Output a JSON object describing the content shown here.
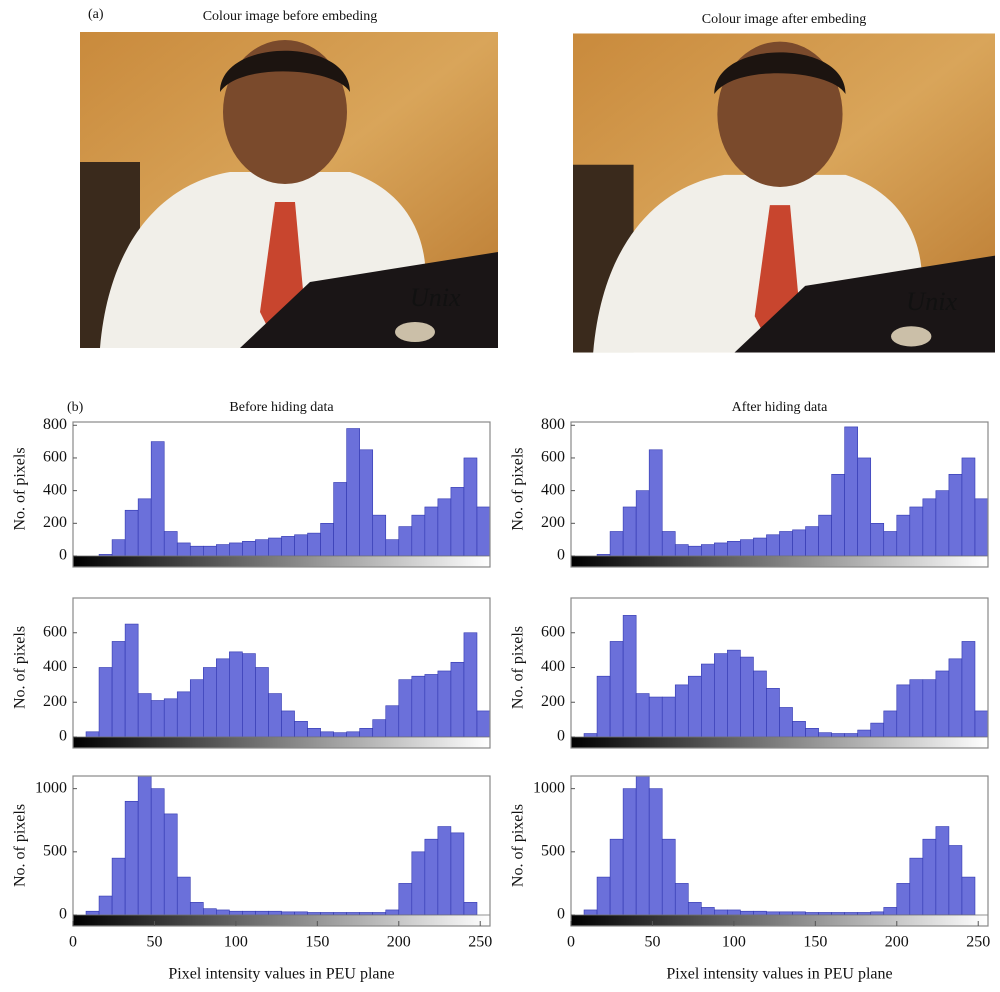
{
  "panel_a": {
    "label": "(a)",
    "images": [
      {
        "caption": "Colour image before embeding"
      },
      {
        "caption": "Colour image after embeding"
      }
    ]
  },
  "panel_b": {
    "label": "(b)"
  },
  "chart_data": [
    {
      "type": "histogram",
      "title": "Before hiding data",
      "y_label": "No. of pixels",
      "color": "#6b70da",
      "bins": [
        0,
        8,
        16,
        24,
        32,
        40,
        48,
        56,
        64,
        72,
        80,
        88,
        96,
        104,
        112,
        120,
        128,
        136,
        144,
        152,
        160,
        168,
        176,
        184,
        192,
        200,
        208,
        216,
        224,
        232,
        240,
        248,
        256
      ],
      "values": [
        0,
        0,
        10,
        100,
        280,
        350,
        700,
        150,
        80,
        60,
        60,
        70,
        80,
        90,
        100,
        110,
        120,
        130,
        140,
        200,
        450,
        780,
        650,
        250,
        100,
        180,
        250,
        300,
        350,
        420,
        600,
        300
      ],
      "xlim": [
        0,
        256
      ],
      "ylim": [
        0,
        820
      ],
      "yticks": [
        0,
        200,
        400,
        600,
        800
      ]
    },
    {
      "type": "histogram",
      "title": "After hiding data",
      "y_label": "No. of pixels",
      "color": "#6b70da",
      "bins": [
        0,
        8,
        16,
        24,
        32,
        40,
        48,
        56,
        64,
        72,
        80,
        88,
        96,
        104,
        112,
        120,
        128,
        136,
        144,
        152,
        160,
        168,
        176,
        184,
        192,
        200,
        208,
        216,
        224,
        232,
        240,
        248,
        256
      ],
      "values": [
        0,
        0,
        10,
        150,
        300,
        400,
        650,
        150,
        70,
        60,
        70,
        80,
        90,
        100,
        110,
        130,
        150,
        160,
        180,
        250,
        500,
        790,
        600,
        200,
        150,
        250,
        300,
        350,
        400,
        500,
        600,
        350
      ],
      "xlim": [
        0,
        256
      ],
      "ylim": [
        0,
        820
      ],
      "yticks": [
        0,
        200,
        400,
        600,
        800
      ]
    },
    {
      "type": "histogram",
      "y_label": "No. of pixels",
      "color": "#6b70da",
      "bins": [
        0,
        8,
        16,
        24,
        32,
        40,
        48,
        56,
        64,
        72,
        80,
        88,
        96,
        104,
        112,
        120,
        128,
        136,
        144,
        152,
        160,
        168,
        176,
        184,
        192,
        200,
        208,
        216,
        224,
        232,
        240,
        248,
        256
      ],
      "values": [
        0,
        30,
        400,
        550,
        650,
        250,
        210,
        220,
        260,
        330,
        400,
        450,
        490,
        480,
        400,
        250,
        150,
        90,
        50,
        30,
        25,
        30,
        50,
        100,
        180,
        330,
        350,
        360,
        380,
        430,
        600,
        150
      ],
      "xlim": [
        0,
        256
      ],
      "ylim": [
        0,
        800
      ],
      "yticks": [
        0,
        200,
        400,
        600
      ]
    },
    {
      "type": "histogram",
      "y_label": "No. of pixels",
      "color": "#6b70da",
      "bins": [
        0,
        8,
        16,
        24,
        32,
        40,
        48,
        56,
        64,
        72,
        80,
        88,
        96,
        104,
        112,
        120,
        128,
        136,
        144,
        152,
        160,
        168,
        176,
        184,
        192,
        200,
        208,
        216,
        224,
        232,
        240,
        248,
        256
      ],
      "values": [
        0,
        20,
        350,
        550,
        700,
        250,
        230,
        230,
        300,
        350,
        420,
        480,
        500,
        460,
        380,
        280,
        170,
        90,
        50,
        25,
        20,
        20,
        40,
        80,
        150,
        300,
        330,
        330,
        380,
        450,
        550,
        150
      ],
      "xlim": [
        0,
        256
      ],
      "ylim": [
        0,
        800
      ],
      "yticks": [
        0,
        200,
        400,
        600
      ]
    },
    {
      "type": "histogram",
      "y_label": "No. of pixels",
      "x_label": "Pixel intensity values in PEU plane",
      "color": "#6b70da",
      "bins": [
        0,
        8,
        16,
        24,
        32,
        40,
        48,
        56,
        64,
        72,
        80,
        88,
        96,
        104,
        112,
        120,
        128,
        136,
        144,
        152,
        160,
        168,
        176,
        184,
        192,
        200,
        208,
        216,
        224,
        232,
        240,
        248,
        256
      ],
      "values": [
        0,
        30,
        150,
        450,
        900,
        1100,
        1000,
        800,
        300,
        100,
        50,
        40,
        30,
        30,
        30,
        30,
        25,
        25,
        20,
        20,
        20,
        20,
        20,
        20,
        40,
        250,
        500,
        600,
        700,
        650,
        100,
        0
      ],
      "xlim": [
        0,
        256
      ],
      "ylim": [
        0,
        1100
      ],
      "yticks": [
        0,
        500,
        1000
      ],
      "xticks": [
        0,
        50,
        100,
        150,
        200,
        250
      ]
    },
    {
      "type": "histogram",
      "y_label": "No. of pixels",
      "x_label": "Pixel intensity values in PEU plane",
      "color": "#6b70da",
      "bins": [
        0,
        8,
        16,
        24,
        32,
        40,
        48,
        56,
        64,
        72,
        80,
        88,
        96,
        104,
        112,
        120,
        128,
        136,
        144,
        152,
        160,
        168,
        176,
        184,
        192,
        200,
        208,
        216,
        224,
        232,
        240,
        248,
        256
      ],
      "values": [
        0,
        40,
        300,
        600,
        1000,
        1100,
        1000,
        600,
        250,
        100,
        60,
        40,
        40,
        30,
        30,
        25,
        25,
        25,
        20,
        20,
        20,
        20,
        20,
        25,
        60,
        250,
        450,
        600,
        700,
        550,
        300,
        0
      ],
      "xlim": [
        0,
        256
      ],
      "ylim": [
        0,
        1100
      ],
      "yticks": [
        0,
        500,
        1000
      ],
      "xticks": [
        0,
        50,
        100,
        150,
        200,
        250
      ]
    }
  ]
}
